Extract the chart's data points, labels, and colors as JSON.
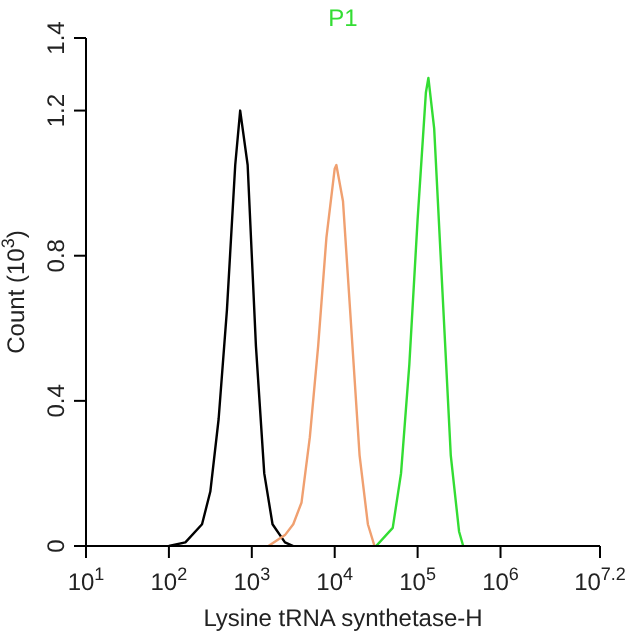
{
  "chart_data": {
    "type": "line",
    "title": "P1",
    "xlabel": "Lysine tRNA synthetase-H",
    "ylabel": "Count (10$^{3}$)",
    "log": "x",
    "xlim": [
      10,
      15848932
    ],
    "xticks": [
      {
        "value": 10,
        "label": "10$^{1}$"
      },
      {
        "value": 100,
        "label": "10$^{2}$"
      },
      {
        "value": 1000,
        "label": "10$^{3}$"
      },
      {
        "value": 10000,
        "label": "10$^{4}$"
      },
      {
        "value": 100000,
        "label": "10$^{5}$"
      },
      {
        "value": 1000000,
        "label": "10$^{6}$"
      },
      {
        "value": 15848932,
        "label": "10$^{7.2}$"
      }
    ],
    "ylim": [
      0,
      1.4
    ],
    "yticks": [
      0,
      0.4,
      0.8,
      1.2,
      1.4
    ],
    "grid": false,
    "legend": false,
    "marker": "none",
    "line_style": "solid",
    "series": [
      {
        "color": "#000000",
        "x": [
          100,
          158,
          251,
          316,
          398,
          501,
          631,
          724,
          891,
          1122,
          1413,
          1778,
          2512,
          3162
        ],
        "values": [
          0,
          0.01,
          0.06,
          0.15,
          0.35,
          0.65,
          1.05,
          1.2,
          1.05,
          0.55,
          0.2,
          0.06,
          0.01,
          0
        ]
      },
      {
        "color": "#f0a070",
        "x": [
          1585,
          2512,
          3162,
          3981,
          5012,
          6310,
          7943,
          10000,
          10470,
          12589,
          15849,
          19953,
          25119,
          30200
        ],
        "values": [
          0,
          0.03,
          0.06,
          0.12,
          0.3,
          0.55,
          0.85,
          1.04,
          1.05,
          0.95,
          0.6,
          0.25,
          0.06,
          0
        ]
      },
      {
        "color": "#33dd33",
        "x": [
          31623,
          50119,
          63096,
          79433,
          100000,
          125893,
          134896,
          158489,
          199526,
          251189,
          316228,
          354813
        ],
        "values": [
          0,
          0.05,
          0.2,
          0.5,
          0.9,
          1.25,
          1.29,
          1.15,
          0.7,
          0.25,
          0.04,
          0
        ]
      }
    ]
  }
}
